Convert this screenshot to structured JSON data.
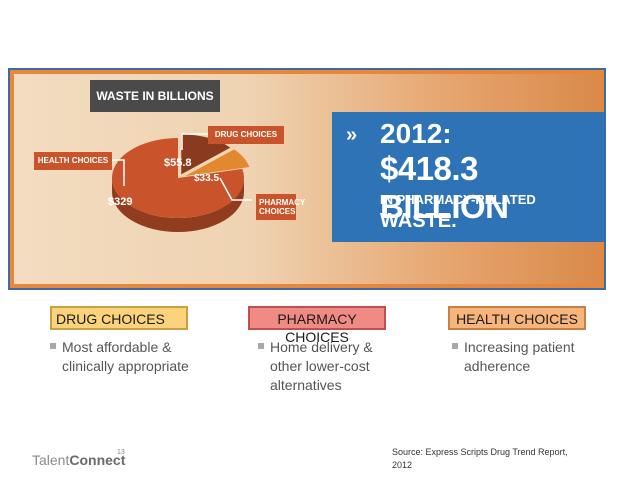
{
  "chart_data": {
    "type": "pie",
    "title": "WASTE IN BILLIONS",
    "categories": [
      "HEALTH CHOICES",
      "DRUG CHOICES",
      "PHARMACY CHOICES"
    ],
    "values": [
      329,
      55.8,
      33.5
    ],
    "value_labels": [
      "$329",
      "$55.8",
      "$33.5"
    ],
    "colors": [
      "#c9532a",
      "#8a3b1f",
      "#e2892f"
    ]
  },
  "callout": {
    "year": "2012:",
    "amount": "$418.3 BILLION",
    "line1": "IN PHARMACY-RELATED",
    "line2": "WASTE."
  },
  "columns": [
    {
      "heading": "DRUG CHOICES",
      "bullet": "Most affordable & clinically appropriate"
    },
    {
      "heading": "PHARMACY CHOICES",
      "bullet": "Home delivery & other lower-cost alternatives"
    },
    {
      "heading": "HEALTH CHOICES",
      "bullet": "Increasing patient adherence"
    }
  ],
  "footer": {
    "logo_light": "Talent",
    "logo_bold": "Connect",
    "page_number": "13",
    "source": "Source: Express Scripts Drug Trend Report, 2012"
  }
}
